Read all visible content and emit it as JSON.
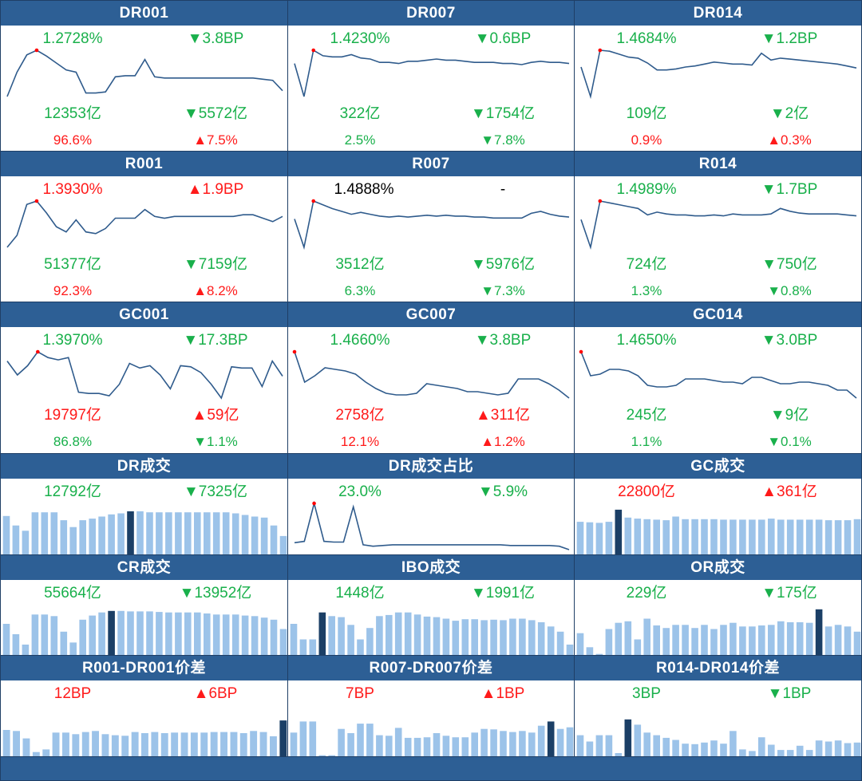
{
  "colors": {
    "header": "#2d5f95",
    "line": "#2f5b8c",
    "bar": "#9cc3e9",
    "bar_highlight": "#1b3f66",
    "up": "#ff1a1a",
    "down": "#19b04b"
  },
  "panels": [
    {
      "id": "dr001",
      "title": "DR001",
      "type": "line",
      "rate": {
        "text": "1.2728%",
        "color": "down"
      },
      "rate_change": {
        "text": "▼3.8BP",
        "color": "down"
      },
      "volume": {
        "text": "12353亿",
        "color": "down"
      },
      "volume_change": {
        "text": "▼5572亿",
        "color": "down"
      },
      "share": {
        "text": "96.6%",
        "color": "up"
      },
      "share_change": {
        "text": "▲7.5%",
        "color": "up"
      },
      "chart_data": {
        "type": "line",
        "values": [
          0.87,
          1.08,
          1.23,
          1.27,
          1.22,
          1.16,
          1.1,
          1.08,
          0.9,
          0.9,
          0.91,
          1.04,
          1.05,
          1.05,
          1.19,
          1.04,
          1.03,
          1.03,
          1.03,
          1.03,
          1.03,
          1.03,
          1.03,
          1.03,
          1.03,
          1.03,
          1.02,
          1.01,
          0.92
        ],
        "marker": 3
      }
    },
    {
      "id": "dr007",
      "title": "DR007",
      "type": "line",
      "rate": {
        "text": "1.4230%",
        "color": "down"
      },
      "rate_change": {
        "text": "▼0.6BP",
        "color": "down"
      },
      "volume": {
        "text": "322亿",
        "color": "down"
      },
      "volume_change": {
        "text": "▼1754亿",
        "color": "down"
      },
      "share": {
        "text": "2.5%",
        "color": "down"
      },
      "share_change": {
        "text": "▼7.8%",
        "color": "down"
      },
      "chart_data": {
        "type": "line",
        "values": [
          1.3,
          1.0,
          1.42,
          1.37,
          1.36,
          1.36,
          1.38,
          1.35,
          1.34,
          1.31,
          1.31,
          1.3,
          1.32,
          1.32,
          1.33,
          1.34,
          1.33,
          1.33,
          1.32,
          1.31,
          1.31,
          1.31,
          1.3,
          1.3,
          1.29,
          1.31,
          1.32,
          1.31,
          1.31,
          1.3
        ],
        "marker": 2
      }
    },
    {
      "id": "dr014",
      "title": "DR014",
      "type": "line",
      "rate": {
        "text": "1.4684%",
        "color": "down"
      },
      "rate_change": {
        "text": "▼1.2BP",
        "color": "down"
      },
      "volume": {
        "text": "109亿",
        "color": "down"
      },
      "volume_change": {
        "text": "▼2亿",
        "color": "down"
      },
      "share": {
        "text": "0.9%",
        "color": "up"
      },
      "share_change": {
        "text": "▲0.3%",
        "color": "up"
      },
      "chart_data": {
        "type": "line",
        "values": [
          1.3,
          1.0,
          1.47,
          1.46,
          1.43,
          1.4,
          1.39,
          1.34,
          1.27,
          1.27,
          1.28,
          1.3,
          1.31,
          1.33,
          1.35,
          1.34,
          1.33,
          1.33,
          1.32,
          1.44,
          1.37,
          1.39,
          1.38,
          1.37,
          1.36,
          1.35,
          1.34,
          1.33,
          1.31,
          1.29
        ],
        "marker": 2
      }
    },
    {
      "id": "r001",
      "title": "R001",
      "type": "line",
      "rate": {
        "text": "1.3930%",
        "color": "up"
      },
      "rate_change": {
        "text": "▲1.9BP",
        "color": "up"
      },
      "volume": {
        "text": "51377亿",
        "color": "down"
      },
      "volume_change": {
        "text": "▼7159亿",
        "color": "down"
      },
      "share": {
        "text": "92.3%",
        "color": "up"
      },
      "share_change": {
        "text": "▲8.2%",
        "color": "up"
      },
      "chart_data": {
        "type": "line",
        "values": [
          0.95,
          1.02,
          1.2,
          1.22,
          1.15,
          1.07,
          1.04,
          1.11,
          1.04,
          1.03,
          1.06,
          1.12,
          1.12,
          1.12,
          1.17,
          1.13,
          1.12,
          1.13,
          1.13,
          1.13,
          1.13,
          1.13,
          1.13,
          1.13,
          1.14,
          1.14,
          1.12,
          1.1,
          1.13
        ],
        "marker": 3
      }
    },
    {
      "id": "r007",
      "title": "R007",
      "type": "line",
      "rate": {
        "text": "1.4888%",
        "color": "black"
      },
      "rate_change": {
        "text": "-",
        "color": "black"
      },
      "volume": {
        "text": "3512亿",
        "color": "down"
      },
      "volume_change": {
        "text": "▼5976亿",
        "color": "down"
      },
      "share": {
        "text": "6.3%",
        "color": "down"
      },
      "share_change": {
        "text": "▼7.3%",
        "color": "down"
      },
      "chart_data": {
        "type": "line",
        "values": [
          1.3,
          1.0,
          1.49,
          1.45,
          1.41,
          1.38,
          1.35,
          1.37,
          1.35,
          1.33,
          1.32,
          1.33,
          1.32,
          1.33,
          1.34,
          1.33,
          1.34,
          1.33,
          1.33,
          1.32,
          1.32,
          1.31,
          1.31,
          1.31,
          1.31,
          1.36,
          1.38,
          1.35,
          1.33,
          1.32
        ],
        "marker": 2
      }
    },
    {
      "id": "r014",
      "title": "R014",
      "type": "line",
      "rate": {
        "text": "1.4989%",
        "color": "down"
      },
      "rate_change": {
        "text": "▼1.7BP",
        "color": "down"
      },
      "volume": {
        "text": "724亿",
        "color": "down"
      },
      "volume_change": {
        "text": "▼750亿",
        "color": "down"
      },
      "share": {
        "text": "1.3%",
        "color": "down"
      },
      "share_change": {
        "text": "▼0.8%",
        "color": "down"
      },
      "chart_data": {
        "type": "line",
        "values": [
          1.3,
          1.0,
          1.5,
          1.48,
          1.46,
          1.44,
          1.42,
          1.35,
          1.38,
          1.36,
          1.35,
          1.35,
          1.34,
          1.34,
          1.35,
          1.34,
          1.36,
          1.35,
          1.35,
          1.35,
          1.36,
          1.42,
          1.39,
          1.37,
          1.36,
          1.36,
          1.36,
          1.36,
          1.35,
          1.34
        ],
        "marker": 2
      }
    },
    {
      "id": "gc001",
      "title": "GC001",
      "type": "line",
      "rate": {
        "text": "1.3970%",
        "color": "down"
      },
      "rate_change": {
        "text": "▼17.3BP",
        "color": "down"
      },
      "volume": {
        "text": "19797亿",
        "color": "up"
      },
      "volume_change": {
        "text": "▲59亿",
        "color": "up"
      },
      "share": {
        "text": "86.8%",
        "color": "down"
      },
      "share_change": {
        "text": "▼1.1%",
        "color": "down"
      },
      "chart_data": {
        "type": "line",
        "values": [
          1.32,
          1.2,
          1.28,
          1.4,
          1.35,
          1.33,
          1.35,
          1.05,
          1.04,
          1.04,
          1.02,
          1.12,
          1.3,
          1.26,
          1.28,
          1.2,
          1.08,
          1.28,
          1.27,
          1.22,
          1.12,
          1.0,
          1.27,
          1.26,
          1.26,
          1.1,
          1.32,
          1.19
        ],
        "marker": 3
      }
    },
    {
      "id": "gc007",
      "title": "GC007",
      "type": "line",
      "rate": {
        "text": "1.4660%",
        "color": "down"
      },
      "rate_change": {
        "text": "▼3.8BP",
        "color": "down"
      },
      "volume": {
        "text": "2758亿",
        "color": "up"
      },
      "volume_change": {
        "text": "▲311亿",
        "color": "up"
      },
      "share": {
        "text": "12.1%",
        "color": "up"
      },
      "share_change": {
        "text": "▲1.2%",
        "color": "up"
      },
      "chart_data": {
        "type": "line",
        "values": [
          1.47,
          1.28,
          1.32,
          1.37,
          1.36,
          1.35,
          1.33,
          1.28,
          1.24,
          1.21,
          1.2,
          1.2,
          1.21,
          1.27,
          1.26,
          1.25,
          1.24,
          1.22,
          1.22,
          1.21,
          1.2,
          1.21,
          1.3,
          1.3,
          1.3,
          1.27,
          1.23,
          1.18
        ],
        "marker": 0
      }
    },
    {
      "id": "gc014",
      "title": "GC014",
      "type": "line",
      "rate": {
        "text": "1.4650%",
        "color": "down"
      },
      "rate_change": {
        "text": "▼3.0BP",
        "color": "down"
      },
      "volume": {
        "text": "245亿",
        "color": "down"
      },
      "volume_change": {
        "text": "▼9亿",
        "color": "down"
      },
      "share": {
        "text": "1.1%",
        "color": "down"
      },
      "share_change": {
        "text": "▼0.1%",
        "color": "down"
      },
      "chart_data": {
        "type": "line",
        "values": [
          1.47,
          1.32,
          1.33,
          1.36,
          1.36,
          1.35,
          1.32,
          1.26,
          1.25,
          1.25,
          1.26,
          1.3,
          1.3,
          1.3,
          1.29,
          1.28,
          1.28,
          1.27,
          1.31,
          1.31,
          1.29,
          1.27,
          1.27,
          1.28,
          1.28,
          1.27,
          1.26,
          1.23,
          1.23,
          1.18
        ],
        "marker": 0
      }
    },
    {
      "id": "dr-vol",
      "title": "DR成交",
      "type": "bar",
      "rate": {
        "text": "12792亿",
        "color": "down"
      },
      "rate_change": {
        "text": "▼7325亿",
        "color": "down"
      },
      "chart_data": {
        "type": "bar",
        "values": [
          0.73,
          0.55,
          0.45,
          0.8,
          0.8,
          0.8,
          0.65,
          0.52,
          0.65,
          0.68,
          0.72,
          0.76,
          0.78,
          0.82,
          0.82,
          0.8,
          0.8,
          0.8,
          0.8,
          0.8,
          0.8,
          0.8,
          0.8,
          0.8,
          0.78,
          0.75,
          0.72,
          0.7,
          0.55,
          0.35
        ],
        "highlight": 13
      }
    },
    {
      "id": "dr-share",
      "title": "DR成交占比",
      "type": "line",
      "rate": {
        "text": "23.0%",
        "color": "down"
      },
      "rate_change": {
        "text": "▼5.9%",
        "color": "down"
      },
      "chart_data": {
        "type": "line",
        "values": [
          0.28,
          0.3,
          0.85,
          0.3,
          0.29,
          0.29,
          0.8,
          0.25,
          0.23,
          0.24,
          0.25,
          0.25,
          0.25,
          0.25,
          0.25,
          0.25,
          0.25,
          0.25,
          0.25,
          0.25,
          0.25,
          0.25,
          0.24,
          0.24,
          0.24,
          0.24,
          0.24,
          0.23,
          0.18
        ],
        "marker": 2
      }
    },
    {
      "id": "gc-vol",
      "title": "GC成交",
      "type": "bar",
      "rate": {
        "text": "22800亿",
        "color": "up"
      },
      "rate_change": {
        "text": "▲361亿",
        "color": "up"
      },
      "chart_data": {
        "type": "bar",
        "values": [
          0.62,
          0.61,
          0.6,
          0.62,
          0.85,
          0.7,
          0.68,
          0.67,
          0.66,
          0.65,
          0.72,
          0.67,
          0.67,
          0.67,
          0.67,
          0.66,
          0.66,
          0.66,
          0.66,
          0.66,
          0.68,
          0.66,
          0.66,
          0.66,
          0.66,
          0.66,
          0.65,
          0.65,
          0.65,
          0.67
        ],
        "highlight": 4
      }
    },
    {
      "id": "cr-vol",
      "title": "CR成交",
      "type": "bar",
      "rate": {
        "text": "55664亿",
        "color": "down"
      },
      "rate_change": {
        "text": "▼13952亿",
        "color": "down"
      },
      "chart_data": {
        "type": "bar",
        "values": [
          0.6,
          0.4,
          0.2,
          0.78,
          0.78,
          0.75,
          0.45,
          0.24,
          0.68,
          0.76,
          0.82,
          0.85,
          0.85,
          0.84,
          0.84,
          0.84,
          0.83,
          0.82,
          0.82,
          0.82,
          0.82,
          0.8,
          0.78,
          0.78,
          0.78,
          0.76,
          0.75,
          0.72,
          0.68,
          0.5
        ],
        "highlight": 11
      }
    },
    {
      "id": "ibo-vol",
      "title": "IBO成交",
      "type": "bar",
      "rate": {
        "text": "1448亿",
        "color": "down"
      },
      "rate_change": {
        "text": "▼1991亿",
        "color": "down"
      },
      "chart_data": {
        "type": "bar",
        "values": [
          0.6,
          0.3,
          0.3,
          0.82,
          0.75,
          0.73,
          0.58,
          0.3,
          0.52,
          0.75,
          0.77,
          0.82,
          0.82,
          0.78,
          0.74,
          0.73,
          0.7,
          0.66,
          0.69,
          0.69,
          0.67,
          0.68,
          0.67,
          0.7,
          0.7,
          0.67,
          0.63,
          0.55,
          0.45,
          0.2
        ],
        "highlight": 3
      }
    },
    {
      "id": "or-vol",
      "title": "OR成交",
      "type": "bar",
      "rate": {
        "text": "229亿",
        "color": "down"
      },
      "rate_change": {
        "text": "▼175亿",
        "color": "down"
      },
      "chart_data": {
        "type": "bar",
        "values": [
          0.42,
          0.15,
          0.02,
          0.5,
          0.62,
          0.65,
          0.3,
          0.7,
          0.57,
          0.52,
          0.58,
          0.58,
          0.52,
          0.58,
          0.5,
          0.58,
          0.62,
          0.55,
          0.55,
          0.57,
          0.58,
          0.65,
          0.63,
          0.63,
          0.62,
          0.88,
          0.55,
          0.58,
          0.55,
          0.45
        ],
        "highlight": 25
      }
    },
    {
      "id": "r001-dr001",
      "title": "R001-DR001价差",
      "type": "bar",
      "rate": {
        "text": "12BP",
        "color": "up"
      },
      "rate_change": {
        "text": "▲6BP",
        "color": "up"
      },
      "chart_data": {
        "type": "bar",
        "values": [
          0.5,
          0.48,
          0.34,
          0.08,
          0.13,
          0.45,
          0.45,
          0.42,
          0.46,
          0.48,
          0.42,
          0.4,
          0.39,
          0.46,
          0.44,
          0.46,
          0.44,
          0.45,
          0.45,
          0.45,
          0.45,
          0.46,
          0.46,
          0.46,
          0.44,
          0.48,
          0.46,
          0.38,
          0.68
        ],
        "highlight": 28
      }
    },
    {
      "id": "r007-dr007",
      "title": "R007-DR007价差",
      "type": "bar",
      "rate": {
        "text": "7BP",
        "color": "up"
      },
      "rate_change": {
        "text": "▲1BP",
        "color": "up"
      },
      "chart_data": {
        "type": "bar",
        "values": [
          0.45,
          0.66,
          0.66,
          0.02,
          0.02,
          0.52,
          0.44,
          0.62,
          0.62,
          0.4,
          0.39,
          0.54,
          0.35,
          0.35,
          0.36,
          0.44,
          0.39,
          0.36,
          0.36,
          0.45,
          0.52,
          0.51,
          0.48,
          0.46,
          0.48,
          0.45,
          0.58,
          0.66,
          0.52,
          0.55
        ],
        "highlight": 27
      }
    },
    {
      "id": "r014-dr014",
      "title": "R014-DR014价差",
      "type": "bar",
      "rate": {
        "text": "3BP",
        "color": "down"
      },
      "rate_change": {
        "text": "▼1BP",
        "color": "down"
      },
      "chart_data": {
        "type": "bar",
        "values": [
          0.4,
          0.28,
          0.4,
          0.4,
          0.06,
          0.7,
          0.6,
          0.45,
          0.4,
          0.35,
          0.31,
          0.24,
          0.23,
          0.26,
          0.3,
          0.24,
          0.48,
          0.13,
          0.1,
          0.36,
          0.22,
          0.12,
          0.12,
          0.2,
          0.12,
          0.3,
          0.28,
          0.3,
          0.25,
          0.26
        ],
        "highlight": 5
      }
    }
  ]
}
